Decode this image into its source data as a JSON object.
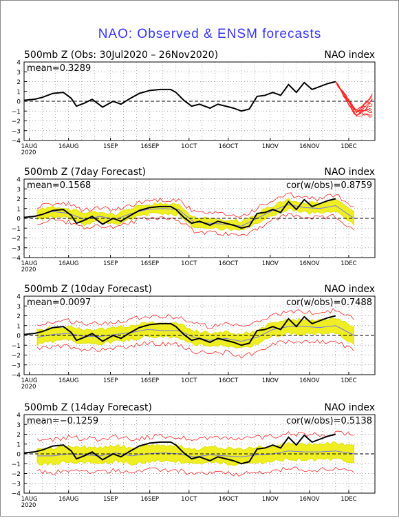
{
  "title": "NAO: Observed & ENSM forecasts",
  "colors": {
    "title": "#3333ff",
    "observed": "#000000",
    "ensemble_mean": "#7777ee",
    "spread_band": "#dddd00",
    "spread_fill": "#eeee22",
    "members": "#ff2222",
    "zero_line": "#000000"
  },
  "chart_data": [
    {
      "type": "line",
      "title": "500mb Z (Obs: 30Jul2020 – 26Nov2020)",
      "right_title": "NAO index",
      "mean_label": "mean=0.3289",
      "cor_label": "",
      "ylim": [
        -4,
        4
      ],
      "yticks": [
        -4,
        -3,
        -2,
        -1,
        0,
        1,
        2,
        3,
        4
      ],
      "xlim": [
        "2020-07-30",
        "2020-12-11"
      ],
      "xticks": [
        "1AUG",
        "16AUG",
        "1SEP",
        "16SEP",
        "1OCT",
        "16OCT",
        "1NOV",
        "16NOV",
        "1DEC"
      ],
      "xtick_sublabel": "2020",
      "grid": "dotted",
      "observed": {
        "x": [
          "2020-07-30",
          "2020-08-03",
          "2020-08-06",
          "2020-08-10",
          "2020-08-14",
          "2020-08-17",
          "2020-08-19",
          "2020-08-22",
          "2020-08-25",
          "2020-08-29",
          "2020-09-02",
          "2020-09-05",
          "2020-09-08",
          "2020-09-12",
          "2020-09-16",
          "2020-09-20",
          "2020-09-24",
          "2020-09-26",
          "2020-09-29",
          "2020-10-02",
          "2020-10-05",
          "2020-10-09",
          "2020-10-12",
          "2020-10-15",
          "2020-10-18",
          "2020-10-21",
          "2020-10-24",
          "2020-10-27",
          "2020-10-30",
          "2020-11-02",
          "2020-11-05",
          "2020-11-08",
          "2020-11-11",
          "2020-11-14",
          "2020-11-17",
          "2020-11-20",
          "2020-11-23",
          "2020-11-26"
        ],
        "y": [
          0.1,
          0.2,
          0.4,
          0.8,
          0.9,
          0.3,
          -0.5,
          -0.2,
          0.2,
          -0.6,
          0.0,
          -0.3,
          0.2,
          0.8,
          1.1,
          1.2,
          1.2,
          0.9,
          0.1,
          -0.5,
          -0.3,
          -0.7,
          -0.3,
          -0.5,
          -0.7,
          -1.0,
          -0.8,
          0.5,
          0.6,
          0.9,
          0.6,
          1.7,
          0.9,
          1.9,
          1.2,
          1.5,
          1.8,
          2.0
        ]
      },
      "ensemble_spread": null,
      "members": {
        "start": "2020-11-26",
        "end": "2020-12-10",
        "count": 11,
        "final_range": [
          -1.6,
          0.7
        ],
        "min_dip": -1.7
      }
    },
    {
      "type": "line",
      "title": "500mb Z (7day Forecast)",
      "right_title": "NAO index",
      "mean_label": "mean=0.1568",
      "cor_label": "cor(w/obs)=0.8759",
      "ylim": [
        -4,
        4
      ],
      "yticks": [
        -4,
        -3,
        -2,
        -1,
        0,
        1,
        2,
        3,
        4
      ],
      "xlim": [
        "2020-07-30",
        "2020-12-11"
      ],
      "xticks": [
        "1AUG",
        "16AUG",
        "1SEP",
        "16SEP",
        "1OCT",
        "16OCT",
        "1NOV",
        "16NOV",
        "1DEC"
      ],
      "xtick_sublabel": "2020",
      "grid": "dotted",
      "observed": {
        "x": [
          "2020-07-30",
          "2020-08-03",
          "2020-08-06",
          "2020-08-10",
          "2020-08-14",
          "2020-08-17",
          "2020-08-19",
          "2020-08-22",
          "2020-08-25",
          "2020-08-29",
          "2020-09-02",
          "2020-09-05",
          "2020-09-08",
          "2020-09-12",
          "2020-09-16",
          "2020-09-20",
          "2020-09-24",
          "2020-09-26",
          "2020-09-29",
          "2020-10-02",
          "2020-10-05",
          "2020-10-09",
          "2020-10-12",
          "2020-10-15",
          "2020-10-18",
          "2020-10-21",
          "2020-10-24",
          "2020-10-27",
          "2020-10-30",
          "2020-11-02",
          "2020-11-05",
          "2020-11-08",
          "2020-11-11",
          "2020-11-14",
          "2020-11-17",
          "2020-11-20",
          "2020-11-23",
          "2020-11-26"
        ],
        "y": [
          0.1,
          0.2,
          0.4,
          0.8,
          0.9,
          0.3,
          -0.5,
          -0.2,
          0.2,
          -0.6,
          0.0,
          -0.3,
          0.2,
          0.8,
          1.1,
          1.2,
          1.2,
          0.9,
          0.1,
          -0.5,
          -0.3,
          -0.7,
          -0.3,
          -0.5,
          -0.7,
          -1.0,
          -0.8,
          0.5,
          0.6,
          0.9,
          0.6,
          1.7,
          0.9,
          1.9,
          1.2,
          1.5,
          1.8,
          2.0
        ]
      },
      "ensemble_spread": {
        "x": [
          "2020-08-04",
          "2020-08-10",
          "2020-08-16",
          "2020-08-22",
          "2020-08-28",
          "2020-09-03",
          "2020-09-09",
          "2020-09-15",
          "2020-09-21",
          "2020-09-27",
          "2020-10-03",
          "2020-10-09",
          "2020-10-15",
          "2020-10-21",
          "2020-10-27",
          "2020-11-02",
          "2020-11-08",
          "2020-11-14",
          "2020-11-20",
          "2020-11-26",
          "2020-12-03"
        ],
        "mean": [
          0.3,
          0.7,
          0.5,
          -0.1,
          0.2,
          -0.1,
          0.5,
          0.9,
          1.0,
          0.9,
          -0.4,
          -0.5,
          -0.6,
          -0.8,
          0.0,
          0.8,
          1.4,
          1.1,
          1.0,
          1.3,
          0.0
        ],
        "half_width": [
          0.5,
          0.5,
          0.5,
          0.5,
          0.5,
          0.5,
          0.5,
          0.5,
          0.5,
          0.5,
          0.5,
          0.5,
          0.5,
          0.5,
          0.5,
          0.5,
          0.5,
          0.5,
          0.5,
          0.6,
          0.7
        ],
        "outer_half_width": [
          0.8,
          0.8,
          0.9,
          0.9,
          0.9,
          0.9,
          0.9,
          0.9,
          0.9,
          1.0,
          1.0,
          1.0,
          1.0,
          1.0,
          1.0,
          1.0,
          1.0,
          1.0,
          1.0,
          1.1,
          1.2
        ]
      },
      "members": null
    },
    {
      "type": "line",
      "title": "500mb Z (10day Forecast)",
      "right_title": "NAO index",
      "mean_label": "mean=0.0097",
      "cor_label": "cor(w/obs)=0.7488",
      "ylim": [
        -4,
        4
      ],
      "yticks": [
        -4,
        -3,
        -2,
        -1,
        0,
        1,
        2,
        3,
        4
      ],
      "xlim": [
        "2020-07-30",
        "2020-12-11"
      ],
      "xticks": [
        "1AUG",
        "16AUG",
        "1SEP",
        "16SEP",
        "1OCT",
        "16OCT",
        "1NOV",
        "16NOV",
        "1DEC"
      ],
      "xtick_sublabel": "2020",
      "grid": "dotted",
      "observed": {
        "x": [
          "2020-07-30",
          "2020-08-03",
          "2020-08-06",
          "2020-08-10",
          "2020-08-14",
          "2020-08-17",
          "2020-08-19",
          "2020-08-22",
          "2020-08-25",
          "2020-08-29",
          "2020-09-02",
          "2020-09-05",
          "2020-09-08",
          "2020-09-12",
          "2020-09-16",
          "2020-09-20",
          "2020-09-24",
          "2020-09-26",
          "2020-09-29",
          "2020-10-02",
          "2020-10-05",
          "2020-10-09",
          "2020-10-12",
          "2020-10-15",
          "2020-10-18",
          "2020-10-21",
          "2020-10-24",
          "2020-10-27",
          "2020-10-30",
          "2020-11-02",
          "2020-11-05",
          "2020-11-08",
          "2020-11-11",
          "2020-11-14",
          "2020-11-17",
          "2020-11-20",
          "2020-11-23",
          "2020-11-26"
        ],
        "y": [
          0.1,
          0.2,
          0.4,
          0.8,
          0.9,
          0.3,
          -0.5,
          -0.2,
          0.2,
          -0.6,
          0.0,
          -0.3,
          0.2,
          0.8,
          1.1,
          1.2,
          1.2,
          0.9,
          0.1,
          -0.5,
          -0.3,
          -0.7,
          -0.3,
          -0.5,
          -0.7,
          -1.0,
          -0.8,
          0.5,
          0.6,
          0.9,
          0.6,
          1.7,
          0.9,
          1.9,
          1.2,
          1.5,
          1.8,
          2.0
        ]
      },
      "ensemble_spread": {
        "x": [
          "2020-08-04",
          "2020-08-10",
          "2020-08-16",
          "2020-08-22",
          "2020-08-28",
          "2020-09-03",
          "2020-09-09",
          "2020-09-15",
          "2020-09-21",
          "2020-09-27",
          "2020-10-03",
          "2020-10-09",
          "2020-10-15",
          "2020-10-21",
          "2020-10-27",
          "2020-11-02",
          "2020-11-08",
          "2020-11-14",
          "2020-11-20",
          "2020-11-26",
          "2020-12-03"
        ],
        "mean": [
          -0.2,
          0.1,
          0.2,
          -0.1,
          -0.1,
          0.1,
          0.3,
          0.6,
          0.5,
          0.5,
          -0.2,
          -0.5,
          -0.3,
          -0.6,
          -0.2,
          0.6,
          0.9,
          0.9,
          0.8,
          1.0,
          0.0
        ],
        "half_width": [
          0.7,
          0.7,
          0.7,
          0.7,
          0.7,
          0.7,
          0.7,
          0.7,
          0.7,
          0.7,
          0.7,
          0.7,
          0.7,
          0.7,
          0.7,
          0.7,
          0.7,
          0.7,
          0.7,
          0.8,
          0.9
        ],
        "outer_half_width": [
          1.2,
          1.3,
          1.3,
          1.3,
          1.3,
          1.3,
          1.4,
          1.4,
          1.4,
          1.4,
          1.4,
          1.4,
          1.4,
          1.5,
          1.5,
          1.5,
          1.5,
          1.5,
          1.5,
          1.6,
          1.6
        ]
      },
      "members": null
    },
    {
      "type": "line",
      "title": "500mb Z (14day Forecast)",
      "right_title": "NAO index",
      "mean_label": "mean=−0.1259",
      "cor_label": "cor(w/obs)=0.5138",
      "ylim": [
        -4,
        4
      ],
      "yticks": [
        -4,
        -3,
        -2,
        -1,
        0,
        1,
        2,
        3,
        4
      ],
      "xlim": [
        "2020-07-30",
        "2020-12-11"
      ],
      "xticks": [
        "1AUG",
        "16AUG",
        "1SEP",
        "16SEP",
        "1OCT",
        "16OCT",
        "1NOV",
        "16NOV",
        "1DEC"
      ],
      "xtick_sublabel": "2020",
      "grid": "dotted",
      "observed": {
        "x": [
          "2020-07-30",
          "2020-08-03",
          "2020-08-06",
          "2020-08-10",
          "2020-08-14",
          "2020-08-17",
          "2020-08-19",
          "2020-08-22",
          "2020-08-25",
          "2020-08-29",
          "2020-09-02",
          "2020-09-05",
          "2020-09-08",
          "2020-09-12",
          "2020-09-16",
          "2020-09-20",
          "2020-09-24",
          "2020-09-26",
          "2020-09-29",
          "2020-10-02",
          "2020-10-05",
          "2020-10-09",
          "2020-10-12",
          "2020-10-15",
          "2020-10-18",
          "2020-10-21",
          "2020-10-24",
          "2020-10-27",
          "2020-10-30",
          "2020-11-02",
          "2020-11-05",
          "2020-11-08",
          "2020-11-11",
          "2020-11-14",
          "2020-11-17",
          "2020-11-20",
          "2020-11-23",
          "2020-11-26"
        ],
        "y": [
          0.1,
          0.2,
          0.4,
          0.8,
          0.9,
          0.3,
          -0.5,
          -0.2,
          0.2,
          -0.6,
          0.0,
          -0.3,
          0.2,
          0.8,
          1.1,
          1.2,
          1.2,
          0.9,
          0.1,
          -0.5,
          -0.3,
          -0.7,
          -0.3,
          -0.5,
          -0.7,
          -1.0,
          -0.8,
          0.5,
          0.6,
          0.9,
          0.6,
          1.7,
          0.9,
          1.9,
          1.2,
          1.5,
          1.8,
          2.0
        ]
      },
      "ensemble_spread": {
        "x": [
          "2020-08-04",
          "2020-08-10",
          "2020-08-16",
          "2020-08-22",
          "2020-08-28",
          "2020-09-03",
          "2020-09-09",
          "2020-09-15",
          "2020-09-21",
          "2020-09-27",
          "2020-10-03",
          "2020-10-09",
          "2020-10-15",
          "2020-10-21",
          "2020-10-27",
          "2020-11-02",
          "2020-11-08",
          "2020-11-14",
          "2020-11-20",
          "2020-11-26",
          "2020-12-03"
        ],
        "mean": [
          -0.2,
          -0.2,
          0.0,
          -0.1,
          -0.2,
          0.1,
          -0.2,
          0.0,
          0.1,
          0.0,
          -0.3,
          -0.1,
          -0.2,
          -0.3,
          -0.1,
          0.0,
          0.3,
          0.2,
          0.2,
          0.3,
          0.0
        ],
        "half_width": [
          0.8,
          0.8,
          0.8,
          0.8,
          0.8,
          0.8,
          0.8,
          0.8,
          0.8,
          0.8,
          0.8,
          0.8,
          0.8,
          0.8,
          0.8,
          0.8,
          0.8,
          0.8,
          0.8,
          0.8,
          0.9
        ],
        "outer_half_width": [
          1.6,
          1.7,
          1.7,
          1.7,
          1.7,
          1.7,
          1.7,
          1.7,
          1.7,
          1.7,
          1.8,
          1.8,
          1.8,
          1.8,
          1.8,
          1.8,
          1.8,
          1.8,
          1.8,
          1.8,
          1.9
        ]
      },
      "members": null
    }
  ]
}
